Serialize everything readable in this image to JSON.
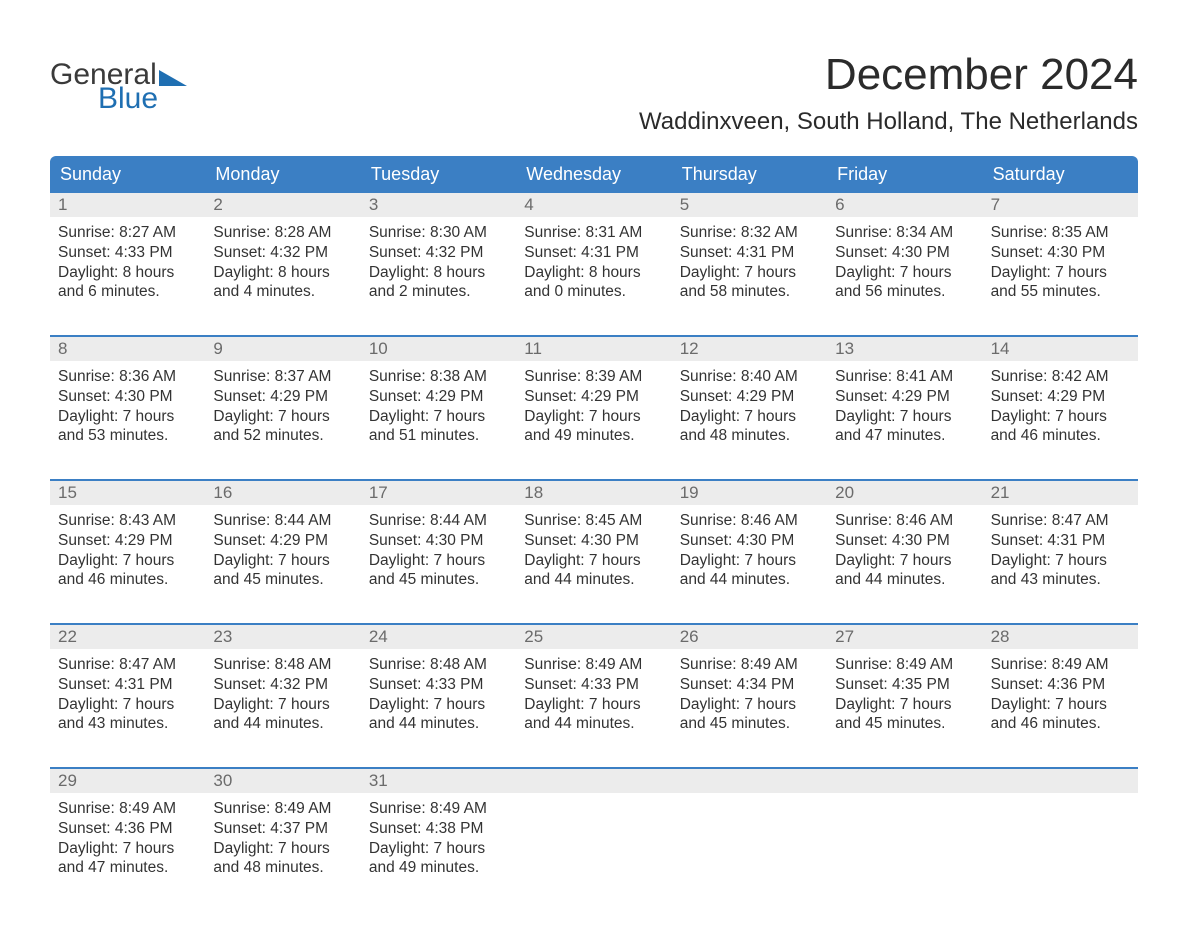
{
  "brand": {
    "part1": "General",
    "part2": "Blue",
    "accent": "#1f6fb2"
  },
  "title": "December 2024",
  "location": "Waddinxveen, South Holland, The Netherlands",
  "colors": {
    "header_bg": "#3b7fc4",
    "header_text": "#ffffff",
    "daynum_bg": "#ececec",
    "daynum_text": "#6b6b6b",
    "body_text": "#333333",
    "week_border": "#3b7fc4",
    "page_bg": "#ffffff"
  },
  "weekdays": [
    "Sunday",
    "Monday",
    "Tuesday",
    "Wednesday",
    "Thursday",
    "Friday",
    "Saturday"
  ],
  "weeks": [
    [
      {
        "n": "1",
        "sunrise": "8:27 AM",
        "sunset": "4:33 PM",
        "dl1": "Daylight: 8 hours",
        "dl2": "and 6 minutes."
      },
      {
        "n": "2",
        "sunrise": "8:28 AM",
        "sunset": "4:32 PM",
        "dl1": "Daylight: 8 hours",
        "dl2": "and 4 minutes."
      },
      {
        "n": "3",
        "sunrise": "8:30 AM",
        "sunset": "4:32 PM",
        "dl1": "Daylight: 8 hours",
        "dl2": "and 2 minutes."
      },
      {
        "n": "4",
        "sunrise": "8:31 AM",
        "sunset": "4:31 PM",
        "dl1": "Daylight: 8 hours",
        "dl2": "and 0 minutes."
      },
      {
        "n": "5",
        "sunrise": "8:32 AM",
        "sunset": "4:31 PM",
        "dl1": "Daylight: 7 hours",
        "dl2": "and 58 minutes."
      },
      {
        "n": "6",
        "sunrise": "8:34 AM",
        "sunset": "4:30 PM",
        "dl1": "Daylight: 7 hours",
        "dl2": "and 56 minutes."
      },
      {
        "n": "7",
        "sunrise": "8:35 AM",
        "sunset": "4:30 PM",
        "dl1": "Daylight: 7 hours",
        "dl2": "and 55 minutes."
      }
    ],
    [
      {
        "n": "8",
        "sunrise": "8:36 AM",
        "sunset": "4:30 PM",
        "dl1": "Daylight: 7 hours",
        "dl2": "and 53 minutes."
      },
      {
        "n": "9",
        "sunrise": "8:37 AM",
        "sunset": "4:29 PM",
        "dl1": "Daylight: 7 hours",
        "dl2": "and 52 minutes."
      },
      {
        "n": "10",
        "sunrise": "8:38 AM",
        "sunset": "4:29 PM",
        "dl1": "Daylight: 7 hours",
        "dl2": "and 51 minutes."
      },
      {
        "n": "11",
        "sunrise": "8:39 AM",
        "sunset": "4:29 PM",
        "dl1": "Daylight: 7 hours",
        "dl2": "and 49 minutes."
      },
      {
        "n": "12",
        "sunrise": "8:40 AM",
        "sunset": "4:29 PM",
        "dl1": "Daylight: 7 hours",
        "dl2": "and 48 minutes."
      },
      {
        "n": "13",
        "sunrise": "8:41 AM",
        "sunset": "4:29 PM",
        "dl1": "Daylight: 7 hours",
        "dl2": "and 47 minutes."
      },
      {
        "n": "14",
        "sunrise": "8:42 AM",
        "sunset": "4:29 PM",
        "dl1": "Daylight: 7 hours",
        "dl2": "and 46 minutes."
      }
    ],
    [
      {
        "n": "15",
        "sunrise": "8:43 AM",
        "sunset": "4:29 PM",
        "dl1": "Daylight: 7 hours",
        "dl2": "and 46 minutes."
      },
      {
        "n": "16",
        "sunrise": "8:44 AM",
        "sunset": "4:29 PM",
        "dl1": "Daylight: 7 hours",
        "dl2": "and 45 minutes."
      },
      {
        "n": "17",
        "sunrise": "8:44 AM",
        "sunset": "4:30 PM",
        "dl1": "Daylight: 7 hours",
        "dl2": "and 45 minutes."
      },
      {
        "n": "18",
        "sunrise": "8:45 AM",
        "sunset": "4:30 PM",
        "dl1": "Daylight: 7 hours",
        "dl2": "and 44 minutes."
      },
      {
        "n": "19",
        "sunrise": "8:46 AM",
        "sunset": "4:30 PM",
        "dl1": "Daylight: 7 hours",
        "dl2": "and 44 minutes."
      },
      {
        "n": "20",
        "sunrise": "8:46 AM",
        "sunset": "4:30 PM",
        "dl1": "Daylight: 7 hours",
        "dl2": "and 44 minutes."
      },
      {
        "n": "21",
        "sunrise": "8:47 AM",
        "sunset": "4:31 PM",
        "dl1": "Daylight: 7 hours",
        "dl2": "and 43 minutes."
      }
    ],
    [
      {
        "n": "22",
        "sunrise": "8:47 AM",
        "sunset": "4:31 PM",
        "dl1": "Daylight: 7 hours",
        "dl2": "and 43 minutes."
      },
      {
        "n": "23",
        "sunrise": "8:48 AM",
        "sunset": "4:32 PM",
        "dl1": "Daylight: 7 hours",
        "dl2": "and 44 minutes."
      },
      {
        "n": "24",
        "sunrise": "8:48 AM",
        "sunset": "4:33 PM",
        "dl1": "Daylight: 7 hours",
        "dl2": "and 44 minutes."
      },
      {
        "n": "25",
        "sunrise": "8:49 AM",
        "sunset": "4:33 PM",
        "dl1": "Daylight: 7 hours",
        "dl2": "and 44 minutes."
      },
      {
        "n": "26",
        "sunrise": "8:49 AM",
        "sunset": "4:34 PM",
        "dl1": "Daylight: 7 hours",
        "dl2": "and 45 minutes."
      },
      {
        "n": "27",
        "sunrise": "8:49 AM",
        "sunset": "4:35 PM",
        "dl1": "Daylight: 7 hours",
        "dl2": "and 45 minutes."
      },
      {
        "n": "28",
        "sunrise": "8:49 AM",
        "sunset": "4:36 PM",
        "dl1": "Daylight: 7 hours",
        "dl2": "and 46 minutes."
      }
    ],
    [
      {
        "n": "29",
        "sunrise": "8:49 AM",
        "sunset": "4:36 PM",
        "dl1": "Daylight: 7 hours",
        "dl2": "and 47 minutes."
      },
      {
        "n": "30",
        "sunrise": "8:49 AM",
        "sunset": "4:37 PM",
        "dl1": "Daylight: 7 hours",
        "dl2": "and 48 minutes."
      },
      {
        "n": "31",
        "sunrise": "8:49 AM",
        "sunset": "4:38 PM",
        "dl1": "Daylight: 7 hours",
        "dl2": "and 49 minutes."
      },
      null,
      null,
      null,
      null
    ]
  ],
  "labels": {
    "sunrise": "Sunrise: ",
    "sunset": "Sunset: "
  }
}
